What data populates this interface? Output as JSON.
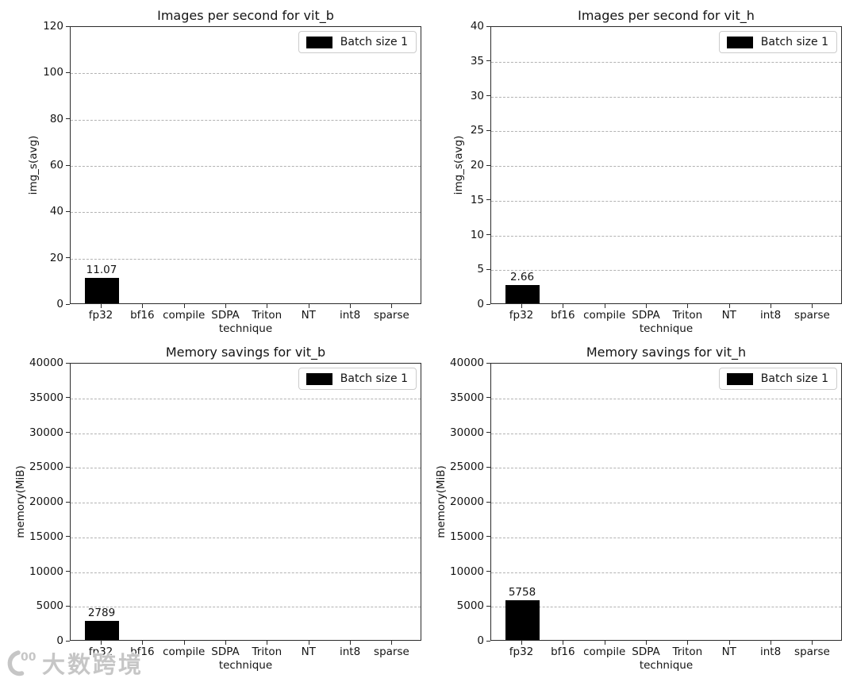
{
  "watermark": {
    "logo_text": "00",
    "text": "大数跨境"
  },
  "chart_data": [
    {
      "type": "bar",
      "title": "Images per second for vit_b",
      "xlabel": "technique",
      "ylabel": "img_s(avg)",
      "categories": [
        "fp32",
        "bf16",
        "compile",
        "SDPA",
        "Triton",
        "NT",
        "int8",
        "sparse"
      ],
      "series": [
        {
          "name": "Batch size 1",
          "color": "#000000",
          "values": [
            11.07,
            null,
            null,
            null,
            null,
            null,
            null,
            null
          ]
        }
      ],
      "bar_labels": [
        "11.07",
        "",
        "",
        "",
        "",
        "",
        "",
        ""
      ],
      "ylim": [
        0,
        120
      ],
      "ytick_step": 20,
      "yticks": [
        "0",
        "20",
        "40",
        "60",
        "80",
        "100",
        "120"
      ],
      "grid": "horizontal-dashed",
      "legend_position": "upper right"
    },
    {
      "type": "bar",
      "title": "Images per second for vit_h",
      "xlabel": "technique",
      "ylabel": "img_s(avg)",
      "categories": [
        "fp32",
        "bf16",
        "compile",
        "SDPA",
        "Triton",
        "NT",
        "int8",
        "sparse"
      ],
      "series": [
        {
          "name": "Batch size 1",
          "color": "#000000",
          "values": [
            2.66,
            null,
            null,
            null,
            null,
            null,
            null,
            null
          ]
        }
      ],
      "bar_labels": [
        "2.66",
        "",
        "",
        "",
        "",
        "",
        "",
        ""
      ],
      "ylim": [
        0,
        40
      ],
      "ytick_step": 5,
      "yticks": [
        "0",
        "5",
        "10",
        "15",
        "20",
        "25",
        "30",
        "35",
        "40"
      ],
      "grid": "horizontal-dashed",
      "legend_position": "upper right"
    },
    {
      "type": "bar",
      "title": "Memory savings for vit_b",
      "xlabel": "technique",
      "ylabel": "memory(MiB)",
      "categories": [
        "fp32",
        "bf16",
        "compile",
        "SDPA",
        "Triton",
        "NT",
        "int8",
        "sparse"
      ],
      "series": [
        {
          "name": "Batch size 1",
          "color": "#000000",
          "values": [
            2789,
            null,
            null,
            null,
            null,
            null,
            null,
            null
          ]
        }
      ],
      "bar_labels": [
        "2789",
        "",
        "",
        "",
        "",
        "",
        "",
        ""
      ],
      "ylim": [
        0,
        40000
      ],
      "ytick_step": 5000,
      "yticks": [
        "0",
        "5000",
        "10000",
        "15000",
        "20000",
        "25000",
        "30000",
        "35000",
        "40000"
      ],
      "grid": "horizontal-dashed",
      "legend_position": "upper right"
    },
    {
      "type": "bar",
      "title": "Memory savings for vit_h",
      "xlabel": "technique",
      "ylabel": "memory(MiB)",
      "categories": [
        "fp32",
        "bf16",
        "compile",
        "SDPA",
        "Triton",
        "NT",
        "int8",
        "sparse"
      ],
      "series": [
        {
          "name": "Batch size 1",
          "color": "#000000",
          "values": [
            5758,
            null,
            null,
            null,
            null,
            null,
            null,
            null
          ]
        }
      ],
      "bar_labels": [
        "5758",
        "",
        "",
        "",
        "",
        "",
        "",
        ""
      ],
      "ylim": [
        0,
        40000
      ],
      "ytick_step": 5000,
      "yticks": [
        "0",
        "5000",
        "10000",
        "15000",
        "20000",
        "25000",
        "30000",
        "35000",
        "40000"
      ],
      "grid": "horizontal-dashed",
      "legend_position": "upper right"
    }
  ]
}
